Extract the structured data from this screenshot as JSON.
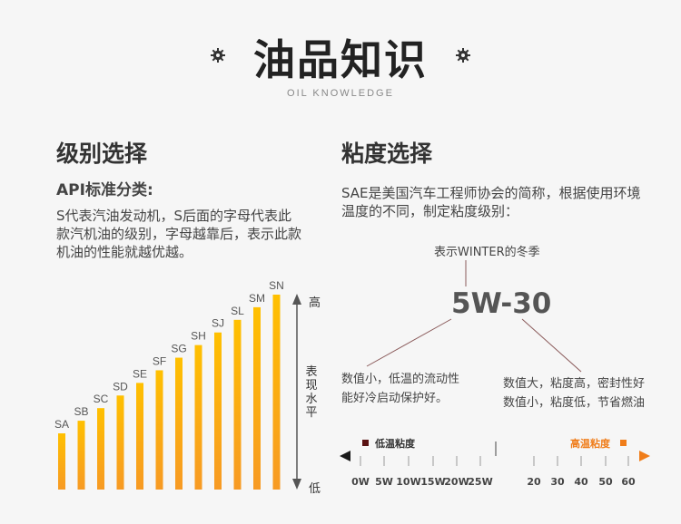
{
  "header": {
    "title": "油品知识",
    "subtitle": "OIL KNOWLEDGE",
    "decor_icon": "gear-icon"
  },
  "left": {
    "heading": "级别选择",
    "api_title": "API标准分类:",
    "api_desc": "S代表汽油发动机，S后面的字母代表此款汽机油的级别，字母越靠后，表示此款机油的性能就越优越。"
  },
  "right": {
    "heading": "粘度选择",
    "sae_desc": "SAE是美国汽车工程师协会的简称，根据使用环境温度的不同，制定粘度级别：",
    "winter_note": "表示WINTER的冬季",
    "code": "5W-30",
    "low_desc": "数值小，低温的流动性能好冷启动保护好。",
    "high_desc_1": "数值大，粘度高，密封性好",
    "high_desc_2": "数值小，粘度低，节省燃油"
  },
  "axis": {
    "top": "高",
    "bottom": "低",
    "label": "表现水平"
  },
  "scale": {
    "low_label": "低温粘度",
    "high_label": "高温粘度",
    "ticks": [
      "0W",
      "5W",
      "10W",
      "15W",
      "20W",
      "25W",
      "20",
      "30",
      "40",
      "50",
      "60"
    ]
  },
  "colors": {
    "bar_top": "#ffc000",
    "bar_bottom": "#f79a24",
    "accent_high": "#f07d1a",
    "accent_low": "#5a1212"
  },
  "chart_data": {
    "type": "bar",
    "categories": [
      "SA",
      "SB",
      "SC",
      "SD",
      "SE",
      "SF",
      "SG",
      "SH",
      "SJ",
      "SL",
      "SM",
      "SN"
    ],
    "values": [
      1,
      2,
      3,
      4,
      5,
      6,
      7,
      8,
      9,
      10,
      11,
      12
    ],
    "title": "",
    "xlabel": "",
    "ylabel": "表现水平"
  }
}
